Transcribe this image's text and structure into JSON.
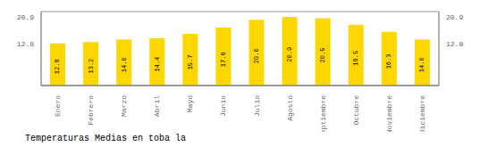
{
  "chart_data": {
    "type": "bar",
    "title": "Temperaturas Medias en toba la",
    "categories": [
      "Enero",
      "Febrero",
      "Marzo",
      "Abril",
      "Mayo",
      "Junio",
      "Julio",
      "Agosto",
      "Septiembre",
      "Octubre",
      "Noviembre",
      "Diciembre"
    ],
    "values": [
      12.8,
      13.2,
      14.0,
      14.4,
      15.7,
      17.6,
      20.0,
      20.9,
      20.5,
      18.5,
      16.3,
      14.0
    ],
    "value_labels": [
      "12.8",
      "13.2",
      "14.0",
      "14.4",
      "15.7",
      "17.6",
      "20.0",
      "20.9",
      "20.5",
      "18.5",
      "16.3",
      "14.0"
    ],
    "color": "#FFD700",
    "ylim": [
      0,
      22.5
    ],
    "yticks": [
      12.8,
      20.9
    ],
    "y2lim": [
      0,
      22.5
    ],
    "y2ticks": [
      12.8,
      20.9
    ],
    "grid": true,
    "data_labels": true
  }
}
